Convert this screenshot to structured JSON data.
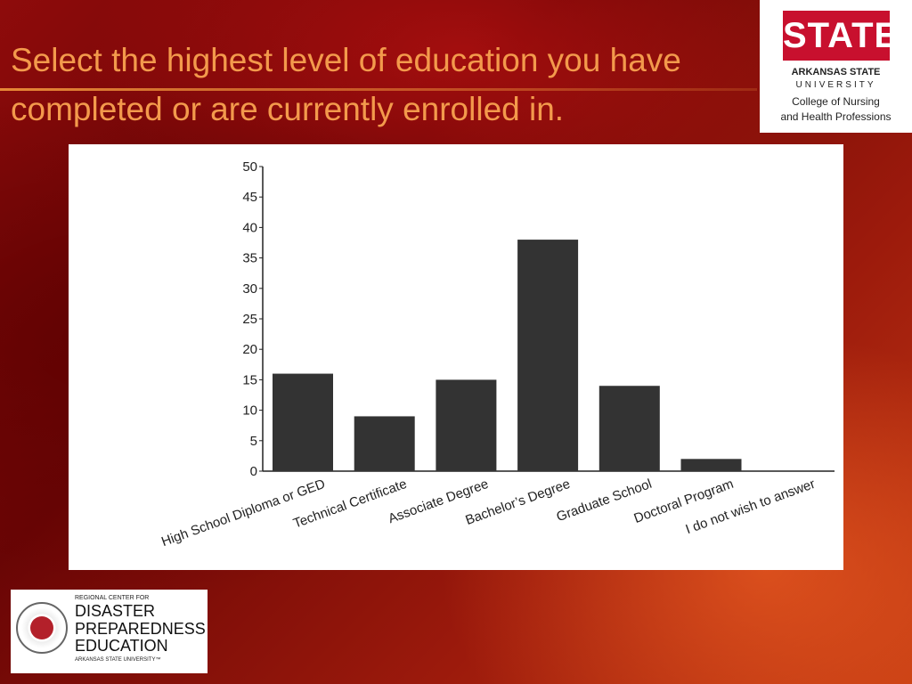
{
  "slide": {
    "title": "Select the highest level of education you have completed or are currently enrolled in."
  },
  "logo_top": {
    "wordmark": "STATE",
    "line1": "ARKANSAS STATE",
    "line2": "UNIVERSITY",
    "line3": "College of Nursing",
    "line4": "and Health Professions"
  },
  "logo_bottom": {
    "line1": "REGIONAL CENTER FOR",
    "line2": "DISASTER",
    "line3": "PREPAREDNESS",
    "line4": "EDUCATION",
    "line5": "ARKANSAS STATE UNIVERSITY™"
  },
  "colors": {
    "title": "#f39a4c",
    "bar": "#333333",
    "brand_red": "#c8102e"
  },
  "chart_data": {
    "type": "bar",
    "categories": [
      "High School Diploma or GED",
      "Technical Certificate",
      "Associate Degree",
      "Bachelor’s Degree",
      "Graduate School",
      "Doctoral Program",
      "I do not wish to answer"
    ],
    "values": [
      16,
      9,
      15,
      38,
      14,
      2,
      0
    ],
    "title": "",
    "xlabel": "",
    "ylabel": "",
    "ylim": [
      0,
      50
    ],
    "yticks": [
      0,
      5,
      10,
      15,
      20,
      25,
      30,
      35,
      40,
      45,
      50
    ],
    "grid": false,
    "legend": "none"
  }
}
